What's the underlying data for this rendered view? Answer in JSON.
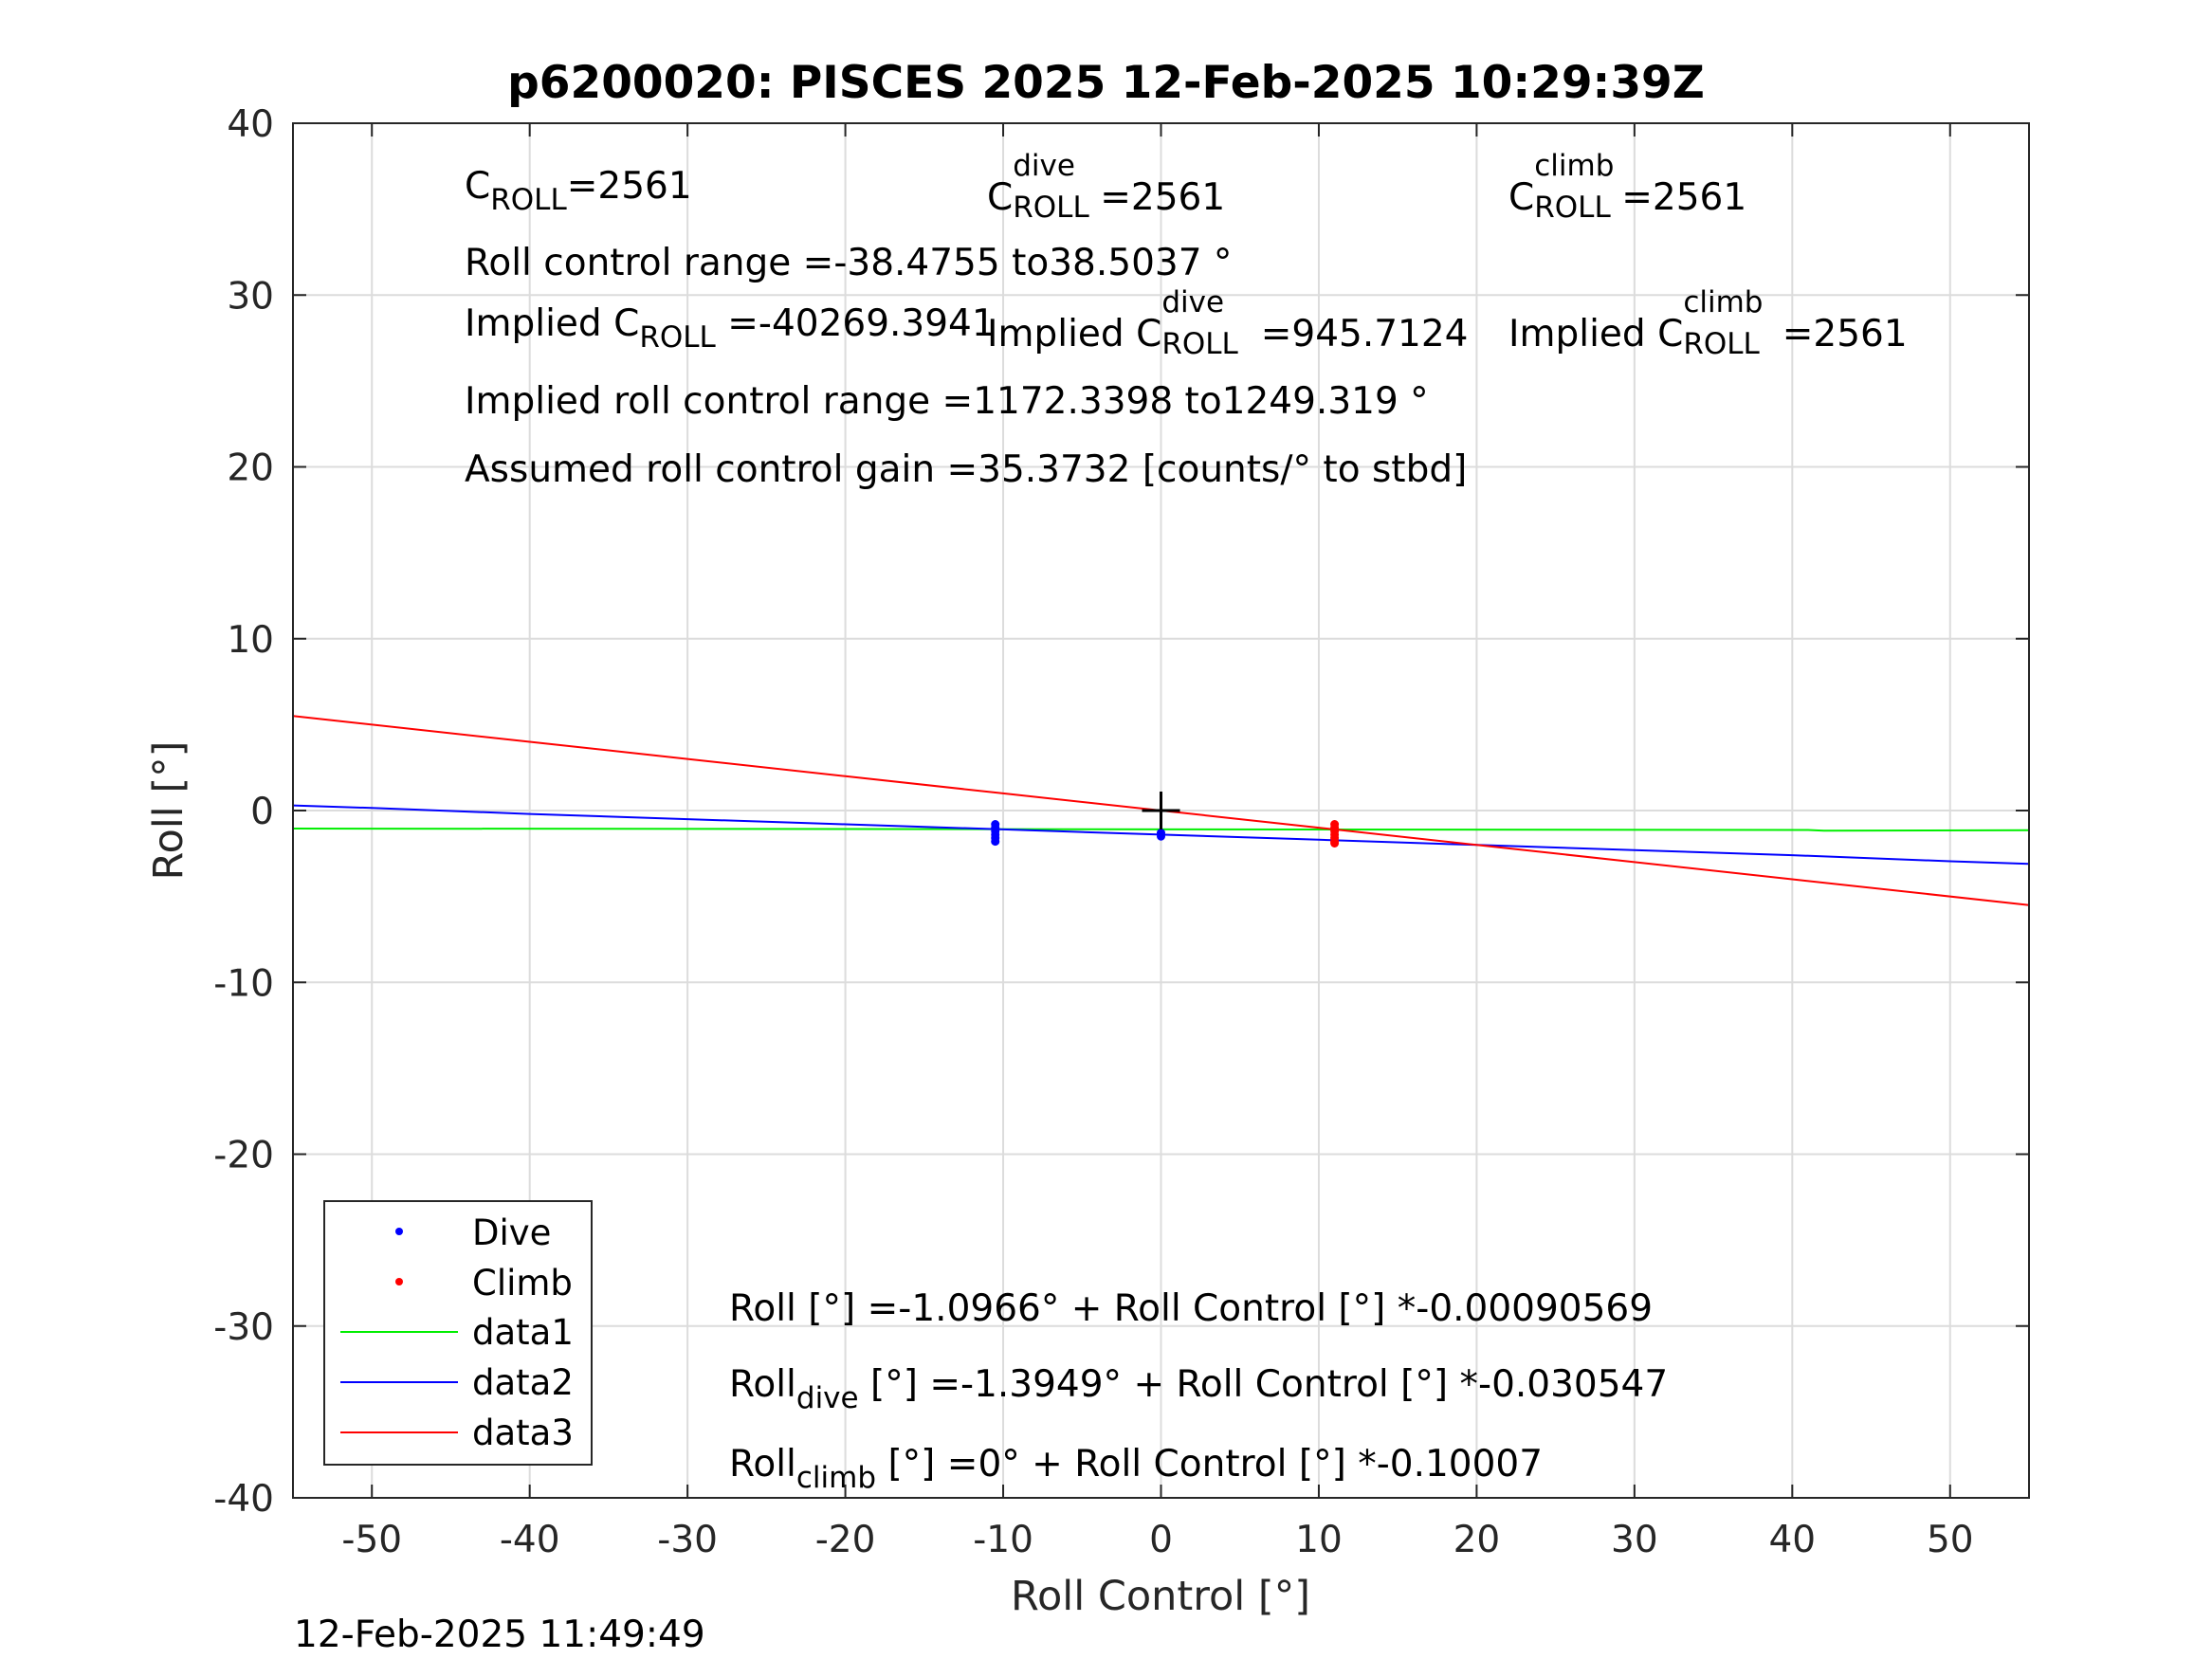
{
  "title": "p6200020: PISCES 2025 12-Feb-2025 10:29:39Z",
  "timestamp": "12-Feb-2025 11:49:49",
  "annotations": {
    "c_roll": {
      "base": "C",
      "sub": "ROLL",
      "value": "=2561"
    },
    "c_roll_dive": {
      "base": "C",
      "sup": "dive",
      "sub": "ROLL",
      "value": "=2561"
    },
    "c_roll_climb": {
      "base": "C",
      "sup": "climb",
      "sub": "ROLL",
      "value": "=2561"
    },
    "roll_control_range": "Roll control range =-38.4755 to38.5037 °",
    "implied_c_roll": {
      "prefix": "Implied C",
      "sub": "ROLL",
      "value": " =-40269.3941"
    },
    "implied_c_roll_dive": {
      "prefix": "Implied C",
      "sup": "dive",
      "sub": "ROLL",
      "value": " =945.7124"
    },
    "implied_c_roll_climb": {
      "prefix": "Implied C",
      "sup": "climb",
      "sub": "ROLL",
      "value": " =2561"
    },
    "implied_range": "Implied roll control range =1172.3398 to1249.319 °",
    "assumed_gain": "Assumed roll control gain =35.3732 [counts/° to stbd]",
    "fit_all": "Roll [°] =-1.0966° + Roll Control [°] *-0.00090569",
    "fit_dive": {
      "base": "Roll",
      "sub": "dive",
      "rest": " [°] =-1.3949° + Roll Control [°] *-0.030547"
    },
    "fit_climb": {
      "base": "Roll",
      "sub": "climb",
      "rest": " [°] =0° + Roll Control [°] *-0.10007"
    }
  },
  "colors": {
    "dive": "#0000ff",
    "climb": "#ff0000",
    "data1": "#00ee00",
    "data2": "#0000ff",
    "data3": "#ff0000",
    "grid": "#dcdcdc",
    "axis": "#262626"
  },
  "chart_data": {
    "type": "scatter",
    "xlabel": "Roll Control [°]",
    "ylabel": "Roll [°]",
    "xlim": [
      -55,
      55
    ],
    "ylim": [
      -40,
      40
    ],
    "xticks": [
      -50,
      -40,
      -30,
      -20,
      -10,
      0,
      10,
      20,
      30,
      40,
      50
    ],
    "yticks": [
      -40,
      -30,
      -20,
      -10,
      0,
      10,
      20,
      30,
      40
    ],
    "grid": true,
    "legend_placement": "bottom-left",
    "series": [
      {
        "name": "Dive",
        "kind": "points",
        "color": "#0000ff",
        "points": [
          [
            -10.5,
            -0.8
          ],
          [
            -10.5,
            -1.0
          ],
          [
            -10.5,
            -1.2
          ],
          [
            -10.5,
            -1.4
          ],
          [
            -10.5,
            -1.6
          ],
          [
            -10.5,
            -1.8
          ],
          [
            0,
            -1.3
          ],
          [
            0,
            -1.5
          ]
        ]
      },
      {
        "name": "Climb",
        "kind": "points",
        "color": "#ff0000",
        "points": [
          [
            11,
            -0.8
          ],
          [
            11,
            -1.0
          ],
          [
            11,
            -1.2
          ],
          [
            11,
            -1.4
          ],
          [
            11,
            -1.6
          ],
          [
            11,
            -1.8
          ],
          [
            11,
            -1.9
          ]
        ]
      },
      {
        "name": "data1",
        "kind": "line",
        "color": "#00ee00",
        "points": [
          [
            -55,
            -1.05
          ],
          [
            41,
            -1.13
          ],
          [
            42,
            -1.17
          ],
          [
            55,
            -1.15
          ]
        ]
      },
      {
        "name": "data2",
        "kind": "line",
        "color": "#0000ff",
        "points": [
          [
            -55,
            0.3
          ],
          [
            -50,
            0.15
          ],
          [
            -40,
            -0.2
          ],
          [
            -30,
            -0.5
          ],
          [
            -20,
            -0.8
          ],
          [
            -10,
            -1.1
          ],
          [
            0,
            -1.4
          ],
          [
            10,
            -1.7
          ],
          [
            20,
            -2.0
          ],
          [
            30,
            -2.3
          ],
          [
            40,
            -2.6
          ],
          [
            50,
            -2.95
          ],
          [
            55,
            -3.1
          ]
        ]
      },
      {
        "name": "data3",
        "kind": "line",
        "color": "#ff0000",
        "points": [
          [
            -55,
            5.5
          ],
          [
            -40,
            4.0
          ],
          [
            -30,
            3.0
          ],
          [
            -20,
            2.0
          ],
          [
            -10,
            1.0
          ],
          [
            0,
            0.0
          ],
          [
            10,
            -1.0
          ],
          [
            20,
            -2.0
          ],
          [
            25,
            -2.5
          ],
          [
            30,
            -3.0
          ],
          [
            40,
            -4.0
          ],
          [
            55,
            -5.5
          ]
        ]
      }
    ],
    "marker": {
      "symbol": "+",
      "at": [
        0,
        0
      ],
      "color": "#000000"
    }
  }
}
